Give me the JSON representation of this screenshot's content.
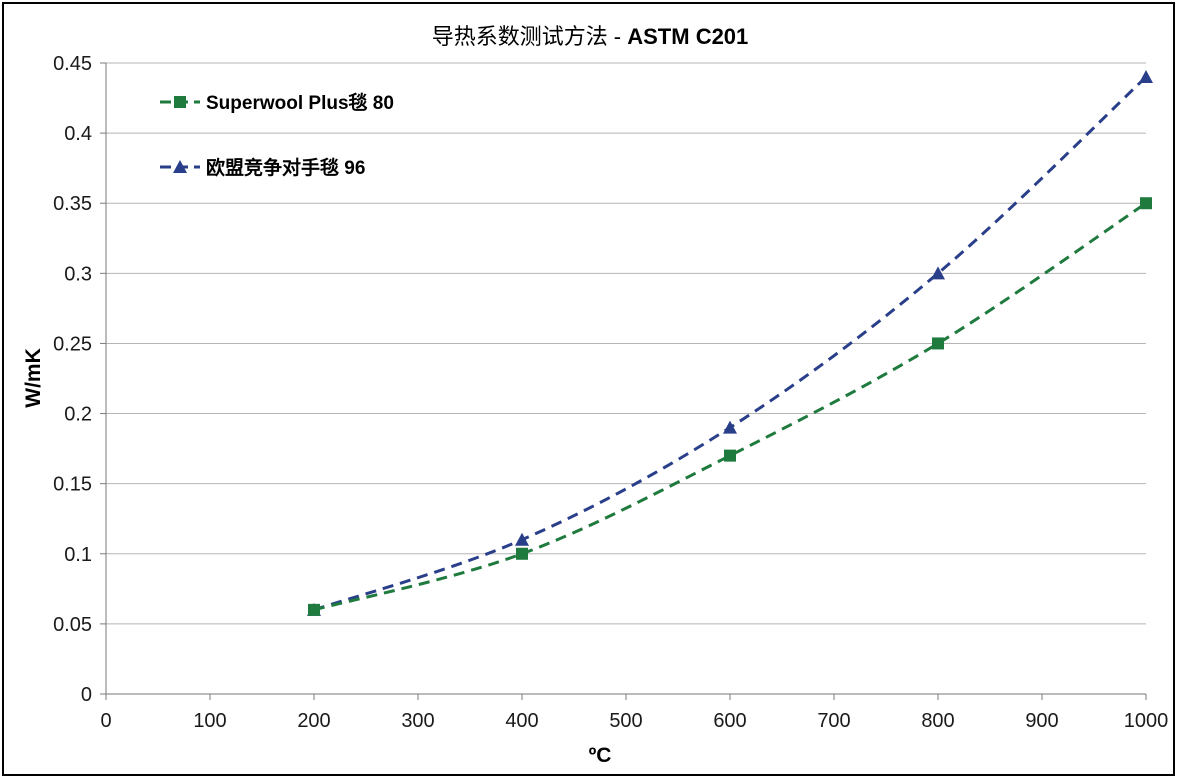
{
  "chart_data": {
    "type": "line",
    "title": "导热系数测试方法 - ",
    "title_bold": "ASTM C201",
    "xlabel": "ºC",
    "ylabel": "W/mK",
    "xlim": [
      0,
      1000
    ],
    "ylim": [
      0,
      0.45
    ],
    "x_ticks": [
      0,
      100,
      200,
      300,
      400,
      500,
      600,
      700,
      800,
      900,
      1000
    ],
    "x_tick_labels": [
      "0",
      "100",
      "200",
      "300",
      "400",
      "500",
      "600",
      "700",
      "800",
      "900",
      "1000"
    ],
    "y_ticks": [
      0,
      0.05,
      0.1,
      0.15,
      0.2,
      0.25,
      0.3,
      0.35,
      0.4,
      0.45
    ],
    "y_tick_labels": [
      "0",
      "0.05",
      "0.1",
      "0.15",
      "0.2",
      "0.25",
      "0.3",
      "0.35",
      "0.4",
      "0.45"
    ],
    "grid": "horizontal",
    "legend_position": "top-left",
    "series": [
      {
        "name": "Superwool Plus毯 80",
        "color": "#1f7a3e",
        "marker": "square",
        "line_style": "dashed",
        "x": [
          200,
          400,
          600,
          800,
          1000
        ],
        "y": [
          0.06,
          0.1,
          0.17,
          0.25,
          0.35
        ]
      },
      {
        "name": "欧盟竞争对手毯 96",
        "color": "#2a3f8a",
        "marker": "triangle",
        "line_style": "dashed",
        "x": [
          200,
          400,
          600,
          800,
          1000
        ],
        "y": [
          0.06,
          0.11,
          0.19,
          0.3,
          0.44
        ]
      }
    ]
  }
}
